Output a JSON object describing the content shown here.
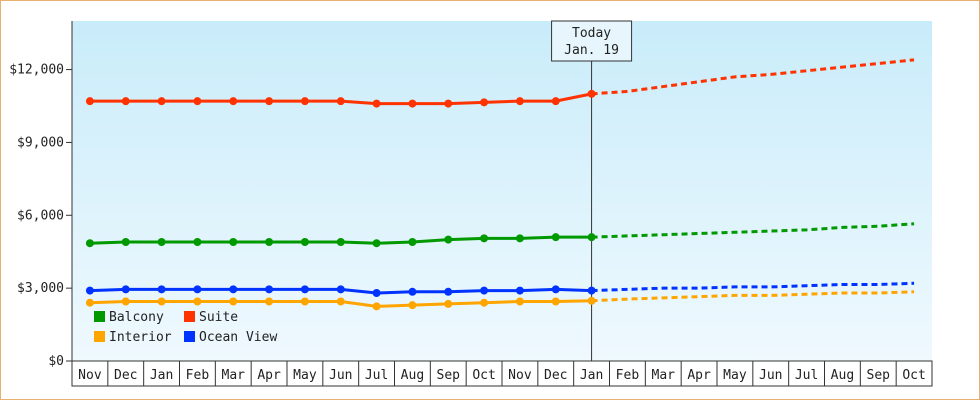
{
  "chart_data": {
    "type": "line",
    "categories": [
      "Nov",
      "Dec",
      "Jan",
      "Feb",
      "Mar",
      "Apr",
      "May",
      "Jun",
      "Jul",
      "Aug",
      "Sep",
      "Oct",
      "Nov",
      "Dec",
      "Jan",
      "Feb",
      "Mar",
      "Apr",
      "May",
      "Jun",
      "Jul",
      "Aug",
      "Sep",
      "Oct"
    ],
    "ylim": [
      0,
      14000
    ],
    "yticks": [
      {
        "value": 0,
        "label": "$0"
      },
      {
        "value": 3000,
        "label": "$3,000"
      },
      {
        "value": 6000,
        "label": "$6,000"
      },
      {
        "value": 9000,
        "label": "$9,000"
      },
      {
        "value": 12000,
        "label": "$12,000"
      }
    ],
    "annotation": [
      "Today",
      "Jan. 19"
    ],
    "legend": "bottom-left",
    "series": [
      {
        "name": "Balcony",
        "color": "#009900",
        "values": [
          4850,
          4900,
          4900,
          4900,
          4900,
          4900,
          4900,
          4900,
          4850,
          4900,
          5000,
          5050,
          5050,
          5100,
          5100,
          null,
          null,
          null,
          null,
          null,
          null,
          null,
          null,
          null
        ],
        "forecast": [
          null,
          null,
          null,
          null,
          null,
          null,
          null,
          null,
          null,
          null,
          null,
          null,
          null,
          null,
          5100,
          5150,
          5200,
          5250,
          5300,
          5350,
          5400,
          5500,
          5550,
          5650
        ]
      },
      {
        "name": "Suite",
        "color": "#ff3300",
        "values": [
          10700,
          10700,
          10700,
          10700,
          10700,
          10700,
          10700,
          10700,
          10600,
          10600,
          10600,
          10650,
          10700,
          10700,
          11000,
          null,
          null,
          null,
          null,
          null,
          null,
          null,
          null,
          null
        ],
        "forecast": [
          null,
          null,
          null,
          null,
          null,
          null,
          null,
          null,
          null,
          null,
          null,
          null,
          null,
          null,
          11000,
          11100,
          11300,
          11500,
          11700,
          11800,
          11950,
          12100,
          12250,
          12400
        ]
      },
      {
        "name": "Interior",
        "color": "#ffa500",
        "values": [
          2400,
          2450,
          2450,
          2450,
          2450,
          2450,
          2450,
          2450,
          2250,
          2300,
          2350,
          2400,
          2450,
          2450,
          2480,
          null,
          null,
          null,
          null,
          null,
          null,
          null,
          null,
          null
        ],
        "forecast": [
          null,
          null,
          null,
          null,
          null,
          null,
          null,
          null,
          null,
          null,
          null,
          null,
          null,
          null,
          2480,
          2550,
          2600,
          2650,
          2700,
          2700,
          2750,
          2800,
          2800,
          2850
        ]
      },
      {
        "name": "Ocean View",
        "color": "#0033ff",
        "values": [
          2900,
          2950,
          2950,
          2950,
          2950,
          2950,
          2950,
          2950,
          2800,
          2850,
          2850,
          2900,
          2900,
          2950,
          2900,
          null,
          null,
          null,
          null,
          null,
          null,
          null,
          null,
          null
        ],
        "forecast": [
          null,
          null,
          null,
          null,
          null,
          null,
          null,
          null,
          null,
          null,
          null,
          null,
          null,
          null,
          2900,
          2950,
          3000,
          3000,
          3050,
          3050,
          3100,
          3150,
          3150,
          3200
        ]
      }
    ]
  }
}
